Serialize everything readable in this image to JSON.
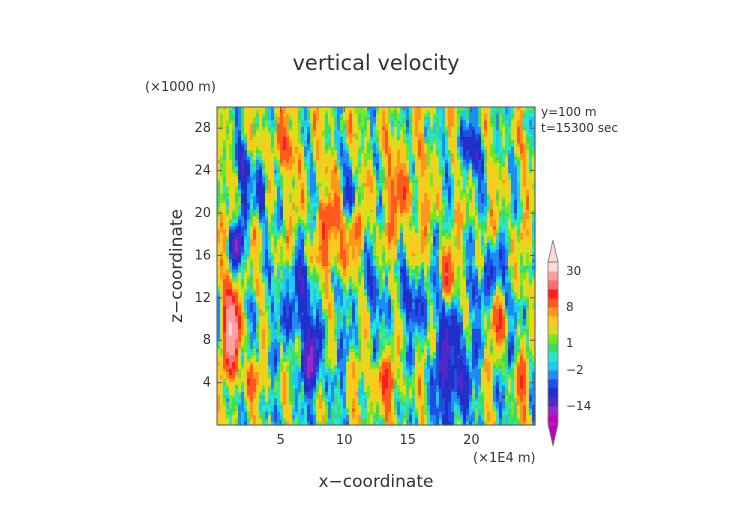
{
  "chart_data": {
    "type": "heatmap",
    "title": "vertical velocity",
    "xlabel": "x−coordinate",
    "ylabel": "z−coordinate",
    "x_unit_label": "(×1E4 m)",
    "y_unit_label": "(×1000 m)",
    "annotations": [
      "y=100 m",
      "t=15300 sec"
    ],
    "x_ticks": [
      5,
      10,
      15,
      20
    ],
    "y_ticks": [
      4,
      8,
      12,
      16,
      20,
      24,
      28
    ],
    "xlim": [
      0,
      25
    ],
    "ylim": [
      0,
      30
    ],
    "colorbar": {
      "labels": [
        "30",
        "8",
        "1",
        "−2",
        "−14"
      ],
      "label_values": [
        30,
        8,
        1,
        -2,
        -14
      ],
      "levels": [
        -20,
        -14,
        -10,
        -6,
        -4,
        -2,
        -1,
        0,
        1,
        2,
        4,
        6,
        8,
        12,
        16,
        20,
        30
      ],
      "colors": [
        "#c000c0",
        "#9a28c8",
        "#5028c8",
        "#2030c8",
        "#1e50e6",
        "#1e8cf0",
        "#1ec8f0",
        "#28e6c8",
        "#3cdc64",
        "#78e628",
        "#dcdc1e",
        "#ffc81e",
        "#ff961e",
        "#ff5a1e",
        "#ff1e1e",
        "#ff6e6e",
        "#ffa0a0",
        "#ffd8d8"
      ]
    }
  }
}
